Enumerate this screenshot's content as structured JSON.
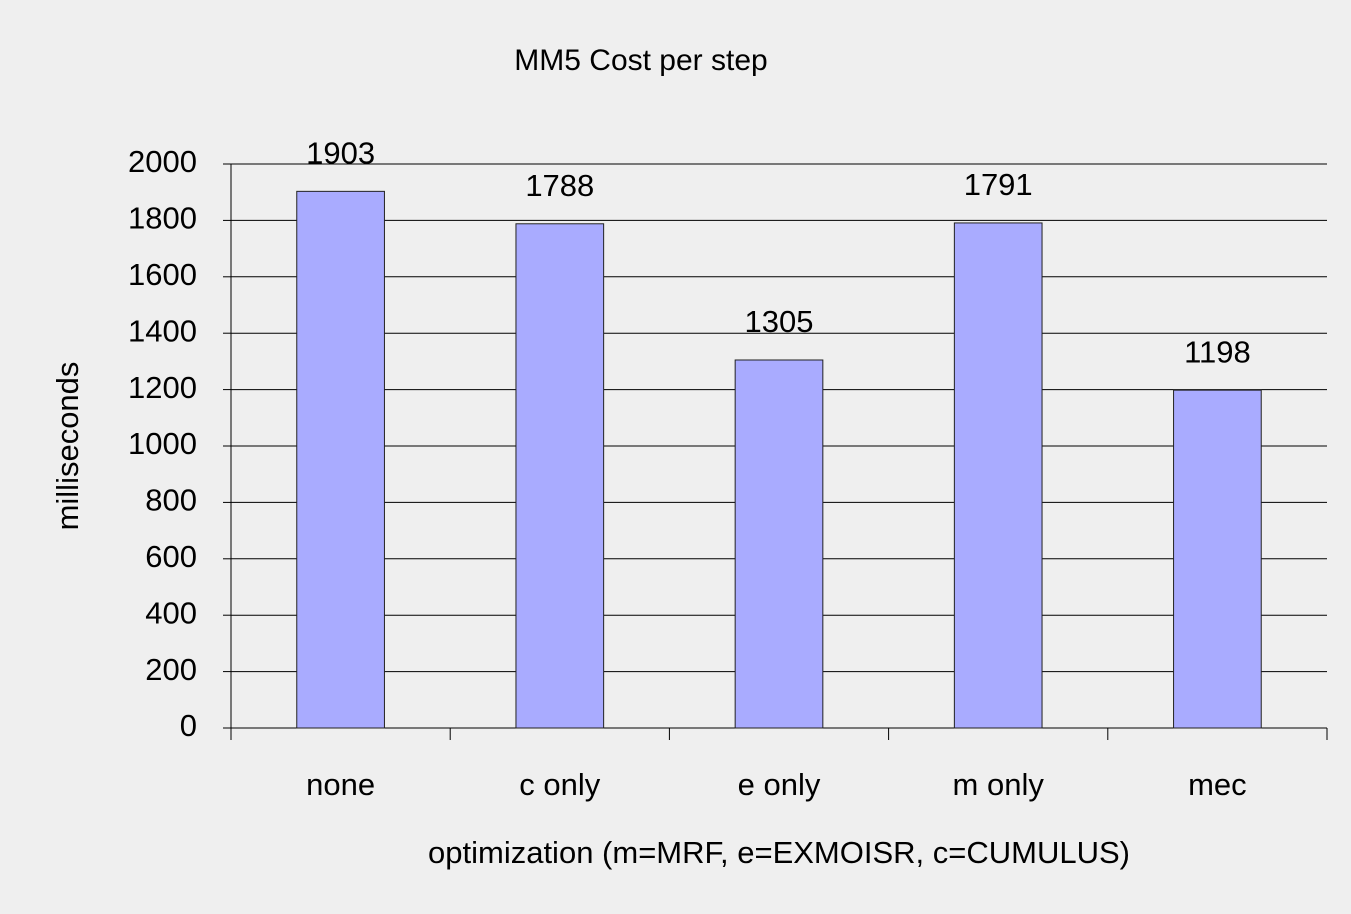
{
  "chart_data": {
    "type": "bar",
    "title": "MM5 Cost per step",
    "x_label": "optimization (m=MRF, e=EXMOISR, c=CUMULUS)",
    "y_label": "milliseconds",
    "categories": [
      "none",
      "c only",
      "e only",
      "m only",
      "mec"
    ],
    "values": [
      1903,
      1788,
      1305,
      1791,
      1198
    ],
    "color": "#a9abff",
    "ylim": [
      0,
      2000
    ],
    "yticks": [
      0,
      200,
      400,
      600,
      800,
      1000,
      1200,
      1400,
      1600,
      1800,
      2000
    ],
    "grid": true
  }
}
